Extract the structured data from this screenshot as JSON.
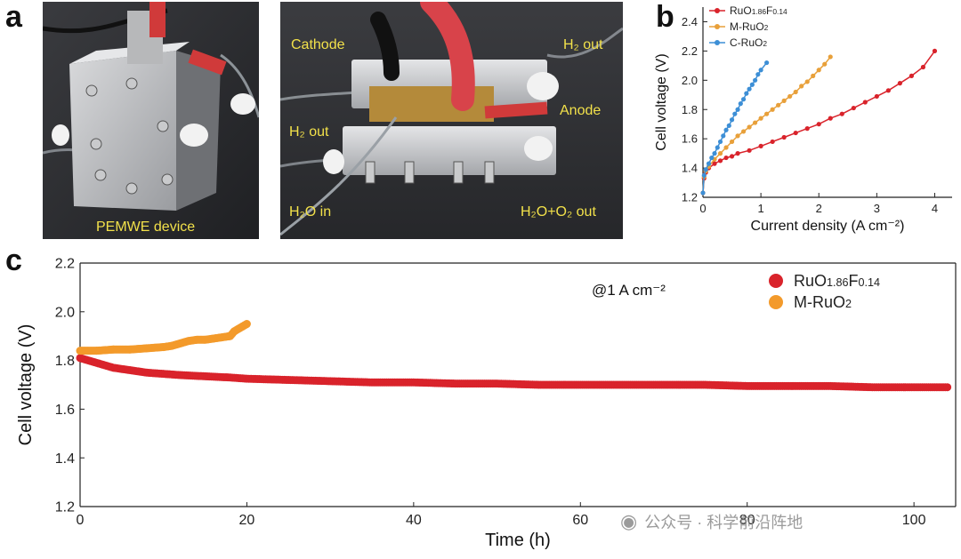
{
  "panels": {
    "a": "a",
    "b": "b",
    "c": "c"
  },
  "photo_left": {
    "caption": "PEMWE device"
  },
  "photo_right": {
    "cathode": "Cathode",
    "h2_out_top": "H₂ out",
    "anode": "Anode",
    "h2_out_left": "H₂ out",
    "h2o_in": "H₂O in",
    "h2o_o2_out": "H₂O+O₂ out"
  },
  "colors": {
    "red": "#d9232b",
    "orange": "#f39a2b",
    "orange_b": "#e8a03a",
    "blue": "#3d8fd6",
    "photo_text": "#f2e14a"
  },
  "chart_data": [
    {
      "id": "b",
      "type": "line",
      "title": "",
      "xlabel": "Current density (A cm⁻²)",
      "ylabel": "Cell voltage (V)",
      "xlim": [
        0,
        4.3
      ],
      "ylim": [
        1.2,
        2.5
      ],
      "xticks": [
        0,
        1,
        2,
        3,
        4
      ],
      "yticks": [
        1.2,
        1.4,
        1.6,
        1.8,
        2.0,
        2.2,
        2.4
      ],
      "xtick_labels": [
        "0",
        "1",
        "2",
        "3",
        "4"
      ],
      "ytick_labels": [
        "1.2",
        "1.4",
        "1.6",
        "1.8",
        "2.0",
        "2.2",
        "2.4"
      ],
      "legend": "top-left",
      "series": [
        {
          "name": "RuO1.86F0.14",
          "legend_parts": [
            "RuO",
            "1.86",
            "F",
            "0.14"
          ],
          "color": "#d9232b",
          "x": [
            0,
            0.02,
            0.05,
            0.1,
            0.2,
            0.3,
            0.4,
            0.5,
            0.6,
            0.8,
            1.0,
            1.2,
            1.4,
            1.6,
            1.8,
            2.0,
            2.2,
            2.4,
            2.6,
            2.8,
            3.0,
            3.2,
            3.4,
            3.6,
            3.8,
            4.0
          ],
          "y": [
            1.23,
            1.33,
            1.37,
            1.4,
            1.43,
            1.45,
            1.47,
            1.48,
            1.5,
            1.52,
            1.55,
            1.58,
            1.61,
            1.64,
            1.67,
            1.7,
            1.74,
            1.77,
            1.81,
            1.85,
            1.89,
            1.93,
            1.98,
            2.03,
            2.09,
            2.2
          ]
        },
        {
          "name": "M-RuO2",
          "legend_parts": [
            "M-RuO",
            "2"
          ],
          "color": "#e8a03a",
          "x": [
            0,
            0.02,
            0.05,
            0.1,
            0.2,
            0.3,
            0.4,
            0.5,
            0.6,
            0.7,
            0.8,
            0.9,
            1.0,
            1.1,
            1.2,
            1.3,
            1.4,
            1.5,
            1.6,
            1.7,
            1.8,
            1.9,
            2.0,
            2.1,
            2.2
          ],
          "y": [
            1.23,
            1.34,
            1.38,
            1.41,
            1.46,
            1.5,
            1.54,
            1.58,
            1.62,
            1.65,
            1.68,
            1.71,
            1.74,
            1.77,
            1.8,
            1.83,
            1.86,
            1.89,
            1.92,
            1.96,
            1.99,
            2.03,
            2.07,
            2.11,
            2.16
          ]
        },
        {
          "name": "C-RuO2",
          "legend_parts": [
            "C-RuO",
            "2"
          ],
          "color": "#3d8fd6",
          "x": [
            0,
            0.02,
            0.05,
            0.1,
            0.15,
            0.2,
            0.25,
            0.3,
            0.35,
            0.4,
            0.45,
            0.5,
            0.55,
            0.6,
            0.65,
            0.7,
            0.75,
            0.8,
            0.85,
            0.9,
            0.95,
            1.0,
            1.1
          ],
          "y": [
            1.23,
            1.35,
            1.39,
            1.43,
            1.47,
            1.5,
            1.54,
            1.58,
            1.62,
            1.66,
            1.69,
            1.73,
            1.77,
            1.8,
            1.84,
            1.87,
            1.91,
            1.94,
            1.97,
            2.0,
            2.04,
            2.07,
            2.12
          ]
        }
      ]
    },
    {
      "id": "c",
      "type": "scatter",
      "title": "",
      "annotation": "@1 A cm⁻²",
      "xlabel": "Time (h)",
      "ylabel": "Cell voltage (V)",
      "xlim": [
        0,
        105
      ],
      "ylim": [
        1.2,
        2.2
      ],
      "xticks": [
        0,
        20,
        40,
        60,
        80,
        100
      ],
      "yticks": [
        1.2,
        1.4,
        1.6,
        1.8,
        2.0,
        2.2
      ],
      "xtick_labels": [
        "0",
        "20",
        "40",
        "60",
        "80",
        "100"
      ],
      "ytick_labels": [
        "1.2",
        "1.4",
        "1.6",
        "1.8",
        "2.0",
        "2.2"
      ],
      "legend": "top-right",
      "series": [
        {
          "name": "RuO1.86F0.14",
          "legend_parts": [
            "RuO",
            "1.86",
            "F",
            "0.14"
          ],
          "color": "#d9232b",
          "x": [
            0,
            1,
            2,
            3,
            4,
            6,
            8,
            10,
            12,
            15,
            18,
            20,
            25,
            30,
            35,
            40,
            45,
            50,
            55,
            60,
            65,
            70,
            75,
            80,
            85,
            90,
            95,
            100,
            104
          ],
          "y": [
            1.81,
            1.8,
            1.79,
            1.78,
            1.77,
            1.76,
            1.75,
            1.745,
            1.74,
            1.735,
            1.73,
            1.725,
            1.72,
            1.715,
            1.71,
            1.71,
            1.705,
            1.705,
            1.7,
            1.7,
            1.7,
            1.7,
            1.7,
            1.695,
            1.695,
            1.695,
            1.69,
            1.69,
            1.69
          ]
        },
        {
          "name": "M-RuO2",
          "legend_parts": [
            "M-RuO",
            "2"
          ],
          "color": "#f39a2b",
          "x": [
            0,
            2,
            4,
            6,
            8,
            10,
            11,
            12,
            13,
            14,
            15,
            16,
            17,
            18,
            18.5,
            19,
            19.5,
            20
          ],
          "y": [
            1.84,
            1.84,
            1.845,
            1.845,
            1.85,
            1.855,
            1.86,
            1.87,
            1.88,
            1.885,
            1.885,
            1.89,
            1.895,
            1.9,
            1.92,
            1.93,
            1.94,
            1.95
          ]
        }
      ]
    }
  ],
  "watermark": {
    "text": "公众号 · 科学前沿阵地"
  }
}
